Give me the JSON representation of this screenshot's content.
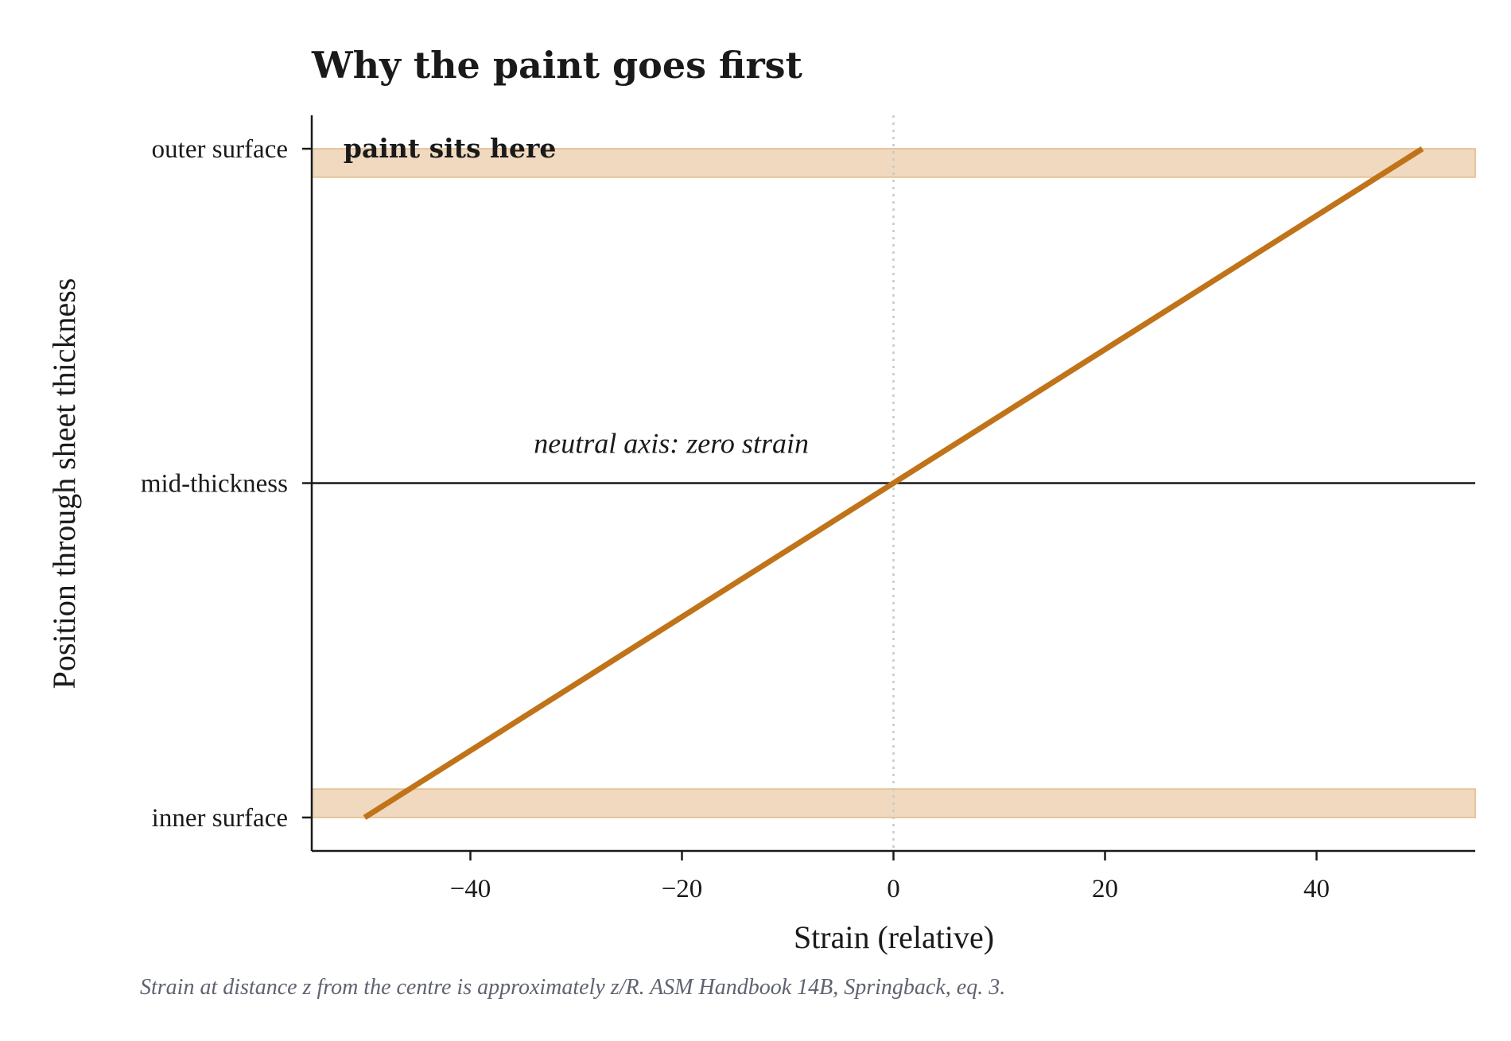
{
  "chart_data": {
    "type": "line",
    "title": "Why the paint goes first",
    "xlabel": "Strain (relative)",
    "ylabel": "Position through sheet thickness",
    "xlim": [
      -55,
      55
    ],
    "ylim": [
      -1.1,
      1.1
    ],
    "x_ticks": [
      -40,
      -20,
      0,
      20,
      40
    ],
    "x_tick_labels": [
      "−40",
      "−20",
      "0",
      "20",
      "40"
    ],
    "y_ticks": [
      -1,
      0,
      1
    ],
    "y_tick_labels": [
      "inner surface",
      "mid-thickness",
      "outer surface"
    ],
    "series": [
      {
        "x": [
          -50,
          50
        ],
        "y": [
          -1,
          1
        ],
        "color": "#c07318"
      }
    ],
    "bands": [
      {
        "y0": 0.915,
        "y1": 1.0,
        "color": "#e8c49b"
      },
      {
        "y0": -1.0,
        "y1": -0.915,
        "color": "#e8c49b"
      }
    ],
    "reference_lines": {
      "zero_x": {
        "x": 0,
        "style": "dotted",
        "color": "#c8c8c8"
      },
      "neutral_y": {
        "y": 0,
        "style": "solid",
        "color": "#1a1a1a"
      }
    },
    "annotations": [
      {
        "text": "paint sits here",
        "x": -52,
        "y": 1.0,
        "style": "bold"
      },
      {
        "text": "neutral axis: zero strain",
        "x": -34,
        "y": 0.09,
        "style": "italic"
      }
    ],
    "grid": false,
    "legend": "none"
  },
  "caption": "Strain at distance z from the centre is approximately z/R. ASM Handbook 14B, Springback, eq. 3."
}
